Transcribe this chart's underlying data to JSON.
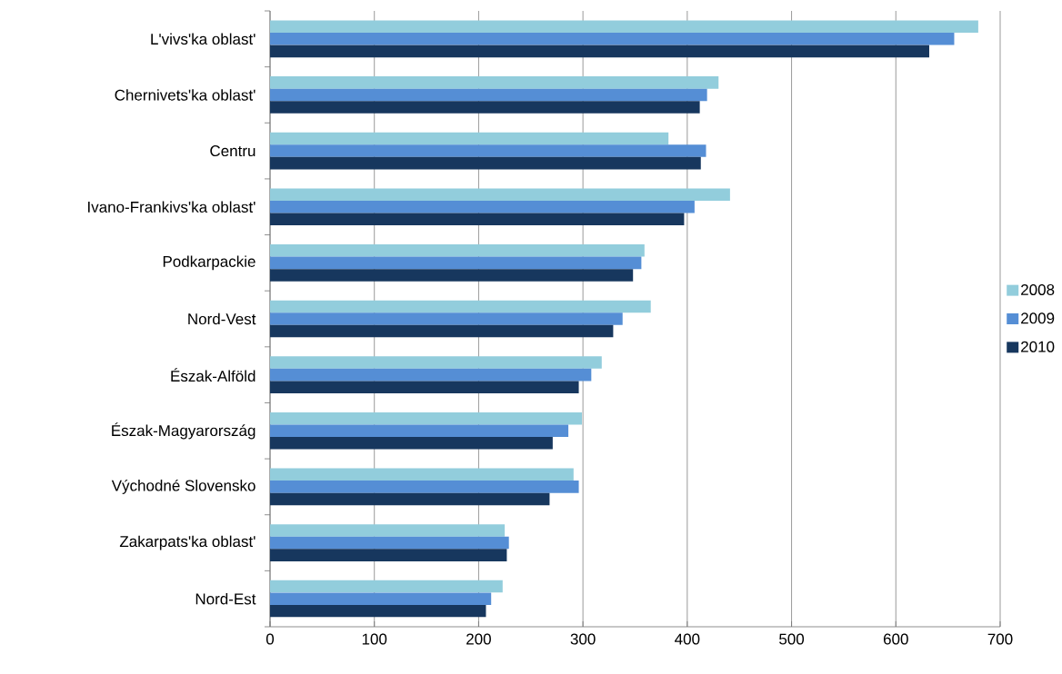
{
  "chart_data": {
    "type": "bar",
    "orientation": "horizontal",
    "categories": [
      "L'vivs'ka oblast'",
      "Chernivets'ka oblast'",
      "Centru",
      "Ivano-Frankivs'ka oblast'",
      "Podkarpackie",
      "Nord-Vest",
      "Észak-Alföld",
      "Észak-Magyarország",
      "Východné Slovensko",
      "Zakarpats'ka oblast'",
      "Nord-Est"
    ],
    "series": [
      {
        "name": "2008",
        "color": "#92cddc",
        "values": [
          679,
          430,
          382,
          441,
          359,
          365,
          318,
          299,
          291,
          225,
          223
        ]
      },
      {
        "name": "2009",
        "color": "#558ed5",
        "values": [
          656,
          419,
          418,
          407,
          356,
          338,
          308,
          286,
          296,
          229,
          212
        ]
      },
      {
        "name": "2010",
        "color": "#17375e",
        "values": [
          632,
          412,
          413,
          397,
          348,
          329,
          296,
          271,
          268,
          227,
          207
        ]
      }
    ],
    "xlim": [
      0,
      700
    ],
    "xticks": [
      0,
      100,
      200,
      300,
      400,
      500,
      600,
      700
    ],
    "grid": "x",
    "legend": "right"
  }
}
